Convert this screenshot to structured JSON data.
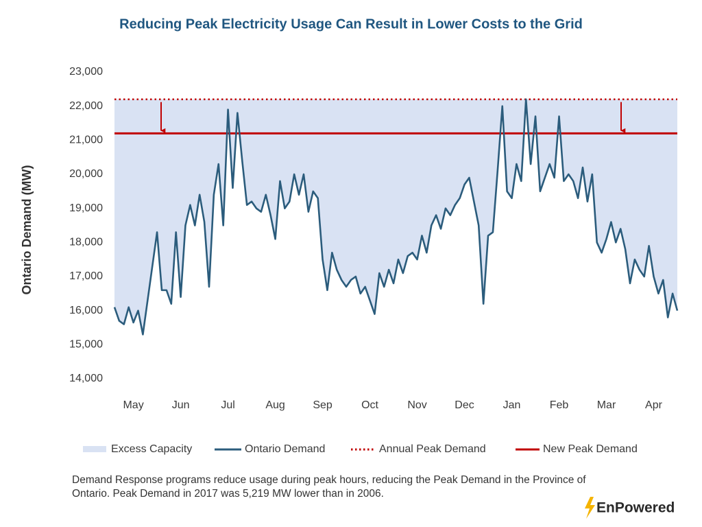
{
  "chart_data": {
    "type": "line",
    "title": "Reducing Peak Electricity Usage Can Result in Lower Costs to the Grid",
    "ylabel": "Ontario Demand (MW)",
    "categories": [
      null,
      null,
      null,
      null,
      "May",
      null,
      null,
      null,
      null,
      null,
      null,
      null,
      null,
      null,
      "Jun",
      null,
      null,
      null,
      null,
      null,
      null,
      null,
      null,
      null,
      "Jul",
      null,
      null,
      null,
      null,
      null,
      null,
      null,
      null,
      null,
      "Aug",
      null,
      null,
      null,
      null,
      null,
      null,
      null,
      null,
      null,
      "Sep",
      null,
      null,
      null,
      null,
      null,
      null,
      null,
      null,
      null,
      "Oct",
      null,
      null,
      null,
      null,
      null,
      null,
      null,
      null,
      null,
      "Nov",
      null,
      null,
      null,
      null,
      null,
      null,
      null,
      null,
      null,
      "Dec",
      null,
      null,
      null,
      null,
      null,
      null,
      null,
      null,
      null,
      "Jan",
      null,
      null,
      null,
      null,
      null,
      null,
      null,
      null,
      null,
      "Feb",
      null,
      null,
      null,
      null,
      null,
      null,
      null,
      null,
      null,
      "Mar",
      null,
      null,
      null,
      null,
      null,
      null,
      null,
      null,
      null,
      "Apr",
      null,
      null,
      null,
      null,
      null
    ],
    "series": [
      {
        "name": "Ontario Demand",
        "color": "#2b5c7c",
        "values": [
          16100,
          15700,
          15600,
          16100,
          15650,
          16000,
          15300,
          16300,
          17300,
          18300,
          16600,
          16600,
          16200,
          18300,
          16400,
          18500,
          19100,
          18500,
          19400,
          18600,
          16700,
          19400,
          20300,
          18500,
          21900,
          19600,
          21800,
          20400,
          19100,
          19200,
          19000,
          18900,
          19400,
          18800,
          18100,
          19800,
          19000,
          19200,
          20000,
          19400,
          20000,
          18900,
          19500,
          19300,
          17500,
          16600,
          17700,
          17200,
          16900,
          16700,
          16900,
          17000,
          16500,
          16700,
          16300,
          15900,
          17100,
          16700,
          17200,
          16800,
          17500,
          17100,
          17600,
          17700,
          17500,
          18200,
          17700,
          18500,
          18800,
          18400,
          19000,
          18800,
          19100,
          19300,
          19700,
          19900,
          19200,
          18500,
          16200,
          18200,
          18300,
          20100,
          22000,
          19500,
          19300,
          20300,
          19800,
          22200,
          20300,
          21700,
          19500,
          19900,
          20300,
          19900,
          21700,
          19800,
          20000,
          19800,
          19300,
          20200,
          19200,
          20000,
          18000,
          17700,
          18100,
          18600,
          18000,
          18400,
          17800,
          16800,
          17500,
          17200,
          17000,
          17900,
          17000,
          16500,
          16900,
          15800,
          16500,
          16000
        ]
      }
    ],
    "area": {
      "name": "Excess Capacity",
      "color": "#d9e2f3"
    },
    "reference_lines": [
      {
        "name": "Annual Peak Demand",
        "value": 22200,
        "color": "#c00000",
        "style": "dotted"
      },
      {
        "name": "New Peak Demand",
        "value": 21200,
        "color": "#c00000",
        "style": "solid"
      }
    ],
    "ylim": [
      14000,
      23000
    ],
    "yticks": [
      {
        "value": 14000,
        "label": "14,000"
      },
      {
        "value": 15000,
        "label": "15,000"
      },
      {
        "value": 16000,
        "label": "16,000"
      },
      {
        "value": 17000,
        "label": "17,000"
      },
      {
        "value": 18000,
        "label": "18,000"
      },
      {
        "value": 19000,
        "label": "19,000"
      },
      {
        "value": 20000,
        "label": "20,000"
      },
      {
        "value": 21000,
        "label": "21,000"
      },
      {
        "value": 22000,
        "label": "22,000"
      },
      {
        "value": 23000,
        "label": "23,000"
      }
    ],
    "grid": false,
    "note": "Demand Response programs reduce usage during peak hours, reducing the Peak Demand in the Province of Ontario. Peak Demand in 2017 was 5,219 MW lower than in 2006.",
    "logo": "EnPowered"
  }
}
